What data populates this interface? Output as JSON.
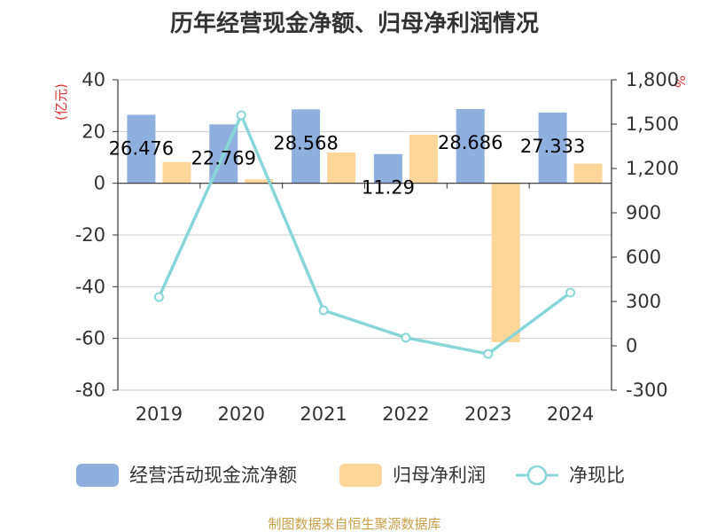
{
  "chart_data": {
    "type": "bar",
    "title": "历年经营现金净额、归母净利润情况",
    "categories": [
      "2019",
      "2020",
      "2021",
      "2022",
      "2023",
      "2024"
    ],
    "series": [
      {
        "name": "经营活动现金流净额",
        "axis": "left",
        "type": "bar",
        "color": "#8fb0de",
        "values": [
          26.476,
          22.769,
          28.568,
          11.29,
          28.686,
          27.333
        ],
        "labels": [
          "26.476",
          "22.769",
          "28.568",
          "11.29",
          "28.686",
          "27.333"
        ]
      },
      {
        "name": "归母净利润",
        "axis": "left",
        "type": "bar",
        "color": "#ffd699",
        "values": [
          8.2,
          1.5,
          11.9,
          18.8,
          -61.5,
          7.6
        ]
      },
      {
        "name": "净现比",
        "axis": "right",
        "type": "line",
        "color": "#88d6d8",
        "values": [
          330,
          1560,
          240,
          55,
          -55,
          360
        ]
      }
    ],
    "y_left": {
      "label": "(亿元)",
      "ylim": [
        -80,
        40
      ],
      "ticks": [
        "40",
        "20",
        "0",
        "-20",
        "-40",
        "-60",
        "-80"
      ]
    },
    "y_right": {
      "label": "%",
      "ylim": [
        -300,
        1800
      ],
      "ticks": [
        "1,800",
        "1,500",
        "1,200",
        "900",
        "600",
        "300",
        "0",
        "-300"
      ]
    },
    "legend": [
      "经营活动现金流净额",
      "归母净利润",
      "净现比"
    ],
    "source": "制图数据来自恒生聚源数据库"
  }
}
